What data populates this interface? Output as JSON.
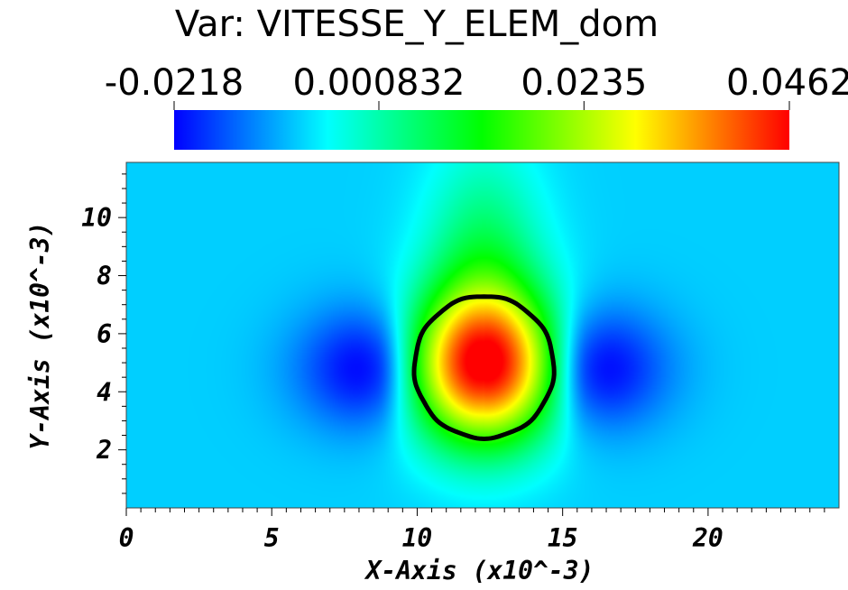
{
  "chart_data": {
    "type": "heatmap",
    "title": "Var: VITESSE_Y_ELEM_dom",
    "variable": "VITESSE_Y_ELEM_dom",
    "colorbar": {
      "tick_labels": [
        "-0.0218",
        "0.000832",
        "0.0235",
        "0.0462"
      ],
      "tick_values": [
        -0.0218,
        0.000832,
        0.0235,
        0.0462
      ],
      "range": [
        -0.0218,
        0.0462
      ],
      "colormap": [
        "#0000ff",
        "#00ffff",
        "#00ff00",
        "#ffff00",
        "#ff0000"
      ],
      "placement": "top"
    },
    "xlabel": "X-Axis (x10^-3)",
    "ylabel": "Y-Axis (x10^-3)",
    "x_ticks": [
      "0",
      "5",
      "10",
      "15",
      "20"
    ],
    "x_tick_values": [
      0,
      5,
      10,
      15,
      20
    ],
    "y_ticks": [
      "2",
      "4",
      "6",
      "8",
      "10"
    ],
    "y_tick_values": [
      2,
      4,
      6,
      8,
      10
    ],
    "xlim": [
      0,
      24.5
    ],
    "ylim": [
      0,
      11.9
    ],
    "grid": false,
    "features": {
      "interface_contour": {
        "center": [
          12.3,
          4.85
        ],
        "radius_x": 2.4,
        "radius_y": 2.45,
        "color": "#000000"
      },
      "max_region": {
        "center": [
          12.3,
          4.9
        ],
        "value": 0.0462
      },
      "min_regions": [
        {
          "center": [
            8.6,
            4.8
          ],
          "value": -0.0218
        },
        {
          "center": [
            15.9,
            4.8
          ],
          "value": -0.0218
        }
      ],
      "background_value": -0.008
    }
  }
}
